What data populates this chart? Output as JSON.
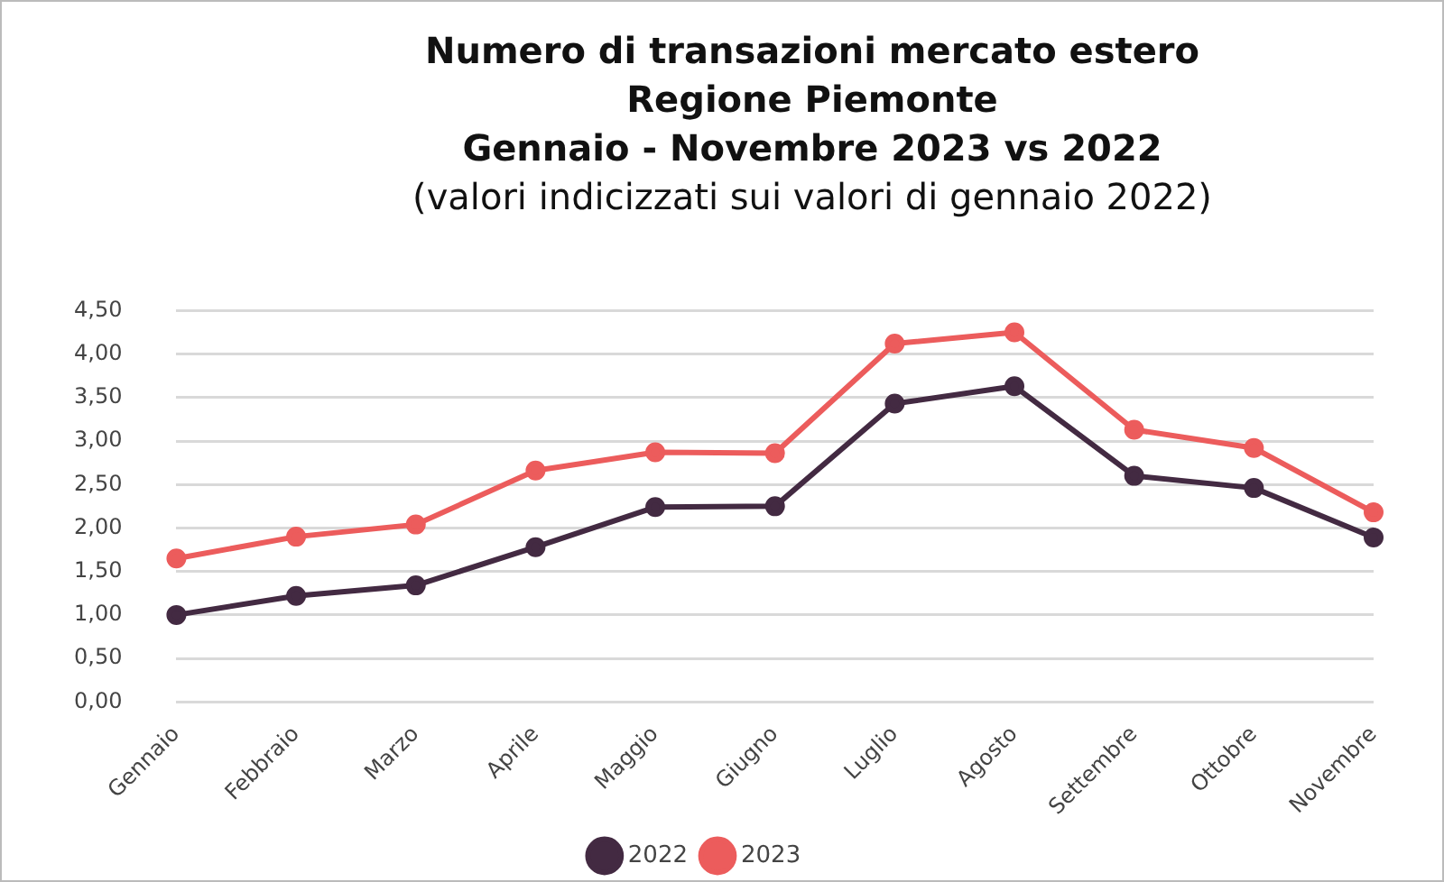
{
  "chart_data": {
    "type": "line",
    "title": "Numero di transazioni mercato estero\nRegione Piemonte\nGennaio - Novembre 2023 vs 2022",
    "subtitle": "(valori indicizzati sui valori di gennaio 2022)",
    "categories": [
      "Gennaio",
      "Febbraio",
      "Marzo",
      "Aprile",
      "Maggio",
      "Giugno",
      "Luglio",
      "Agosto",
      "Settembre",
      "Ottobre",
      "Novembre"
    ],
    "series": [
      {
        "name": "2022",
        "color": "#432a42",
        "values": [
          1.0,
          1.22,
          1.34,
          1.78,
          2.24,
          2.25,
          3.43,
          3.63,
          2.6,
          2.46,
          1.89
        ]
      },
      {
        "name": "2023",
        "color": "#ec5c5c",
        "values": [
          1.65,
          1.9,
          2.04,
          2.66,
          2.87,
          2.86,
          4.12,
          4.25,
          3.13,
          2.92,
          2.18
        ]
      }
    ],
    "ylim": [
      0,
      4.5
    ],
    "yticks": [
      {
        "value": 0,
        "label": "0,00"
      },
      {
        "value": 0.5,
        "label": "0,50"
      },
      {
        "value": 1,
        "label": "1,00"
      },
      {
        "value": 1.5,
        "label": "1,50"
      },
      {
        "value": 2,
        "label": "2,00"
      },
      {
        "value": 2.5,
        "label": "2,50"
      },
      {
        "value": 3,
        "label": "3,00"
      },
      {
        "value": 3.5,
        "label": "3,50"
      },
      {
        "value": 4,
        "label": "4,00"
      },
      {
        "value": 4.5,
        "label": "4,50"
      }
    ],
    "grid": "y",
    "legend": "bottom",
    "marker": "circle",
    "line_style": "solid"
  }
}
